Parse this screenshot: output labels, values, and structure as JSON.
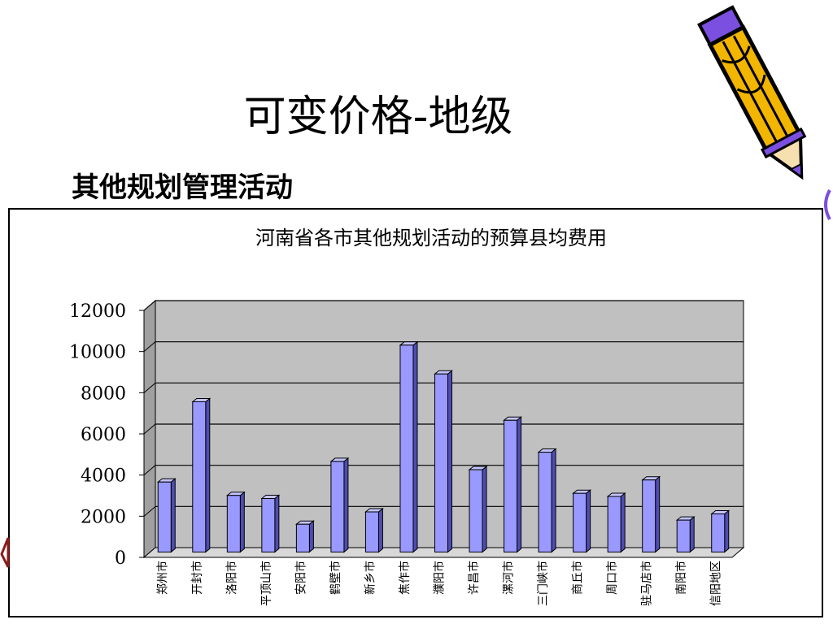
{
  "slide": {
    "title": "可变价格-地级",
    "subtitle": "其他规划管理活动"
  },
  "decoration": {
    "pencil_icon": "pencil-icon",
    "pencil_colors": {
      "body": "#f2b500",
      "outline": "#000000",
      "accent": "#7b4fe0"
    }
  },
  "chart_data": {
    "type": "bar",
    "title": "河南省各市其他规划活动的预算县均费用",
    "xlabel": "",
    "ylabel": "",
    "ylim": [
      0,
      12000
    ],
    "ytick_step": 2000,
    "grid": true,
    "legend": "none",
    "three_d": true,
    "categories": [
      "郑州市",
      "开封市",
      "洛阳市",
      "平顶山市",
      "安阳市",
      "鹤壁市",
      "新乡市",
      "焦作市",
      "濮阳市",
      "许昌市",
      "漯河市",
      "三门峡市",
      "商丘市",
      "周口市",
      "驻马店市",
      "南阳市",
      "信阳地区"
    ],
    "series": [
      {
        "values": [
          3400,
          7300,
          2750,
          2600,
          1350,
          4400,
          1950,
          10050,
          8650,
          4000,
          6400,
          4850,
          2850,
          2700,
          3500,
          1550,
          1850
        ]
      }
    ],
    "colors": {
      "bar": "#9999ff",
      "bar_side": "#4d4db3",
      "bar_top": "#c4c4ff",
      "plot_bg": "#c0c0c0",
      "wall": "#a0a0a0"
    }
  }
}
